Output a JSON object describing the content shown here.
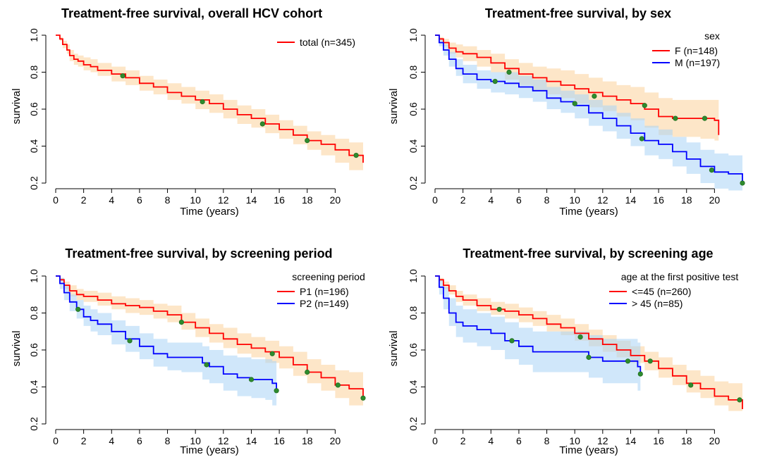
{
  "figure": {
    "colors": {
      "red": "#ff0000",
      "blue": "#0000ff",
      "red_band": "#fbd29b",
      "blue_band": "#a9d3f5",
      "censor_point": "#2e8b2e",
      "censor_edge": "#1f6e1f"
    }
  },
  "chart_data": [
    {
      "type": "line",
      "subtype": "kaplan-meier step",
      "title": "Treatment-free survival, overall HCV cohort",
      "xlabel": "Time (years)",
      "ylabel": "survival",
      "xlim": [
        0,
        22
      ],
      "ylim": [
        0.2,
        1.0
      ],
      "xticks": [
        "0",
        "2",
        "4",
        "6",
        "8",
        "10",
        "12",
        "14",
        "16",
        "18",
        "20"
      ],
      "xtick_values": [
        0,
        2,
        4,
        6,
        8,
        10,
        12,
        14,
        16,
        18,
        20
      ],
      "yticks": [
        "0.2",
        "0.4",
        "0.6",
        "0.8",
        "1.0"
      ],
      "ytick_values": [
        0.2,
        0.4,
        0.6,
        0.8,
        1.0
      ],
      "legend_title": "",
      "legend_position": "top-right",
      "series": [
        {
          "name": "total (n=345)",
          "color": "red",
          "band": "red_band",
          "x": [
            0,
            0.3,
            0.5,
            0.8,
            1,
            1.3,
            1.6,
            2,
            2.5,
            3,
            4,
            5,
            6,
            7,
            8,
            9,
            10,
            11,
            12,
            13,
            14,
            15,
            16,
            17,
            18,
            19,
            20,
            21,
            22
          ],
          "y": [
            1.0,
            0.98,
            0.95,
            0.92,
            0.89,
            0.87,
            0.86,
            0.84,
            0.83,
            0.81,
            0.79,
            0.77,
            0.74,
            0.72,
            0.69,
            0.67,
            0.65,
            0.63,
            0.6,
            0.57,
            0.55,
            0.52,
            0.49,
            0.46,
            0.43,
            0.41,
            0.38,
            0.35,
            0.31
          ],
          "lower": [
            1.0,
            0.97,
            0.93,
            0.9,
            0.86,
            0.84,
            0.83,
            0.81,
            0.8,
            0.78,
            0.75,
            0.73,
            0.7,
            0.68,
            0.65,
            0.63,
            0.6,
            0.58,
            0.55,
            0.52,
            0.5,
            0.47,
            0.44,
            0.41,
            0.38,
            0.35,
            0.31,
            0.27,
            0.2
          ],
          "upper": [
            1.0,
            0.99,
            0.97,
            0.95,
            0.92,
            0.9,
            0.89,
            0.88,
            0.87,
            0.85,
            0.83,
            0.81,
            0.78,
            0.76,
            0.74,
            0.72,
            0.7,
            0.68,
            0.65,
            0.62,
            0.6,
            0.57,
            0.54,
            0.51,
            0.48,
            0.46,
            0.44,
            0.42,
            0.42
          ],
          "censored_x": [
            4.8,
            10.5,
            14.8,
            18,
            21.5
          ],
          "censored_y": [
            0.78,
            0.64,
            0.52,
            0.43,
            0.35
          ]
        }
      ]
    },
    {
      "type": "line",
      "subtype": "kaplan-meier step",
      "title": "Treatment-free survival, by sex",
      "xlabel": "Time (years)",
      "ylabel": "survival",
      "xlim": [
        0,
        22
      ],
      "ylim": [
        0.2,
        1.0
      ],
      "xticks": [
        "0",
        "2",
        "4",
        "6",
        "8",
        "10",
        "12",
        "14",
        "16",
        "18",
        "20"
      ],
      "xtick_values": [
        0,
        2,
        4,
        6,
        8,
        10,
        12,
        14,
        16,
        18,
        20
      ],
      "yticks": [
        "0.2",
        "0.4",
        "0.6",
        "0.8",
        "1.0"
      ],
      "ytick_values": [
        0.2,
        0.4,
        0.6,
        0.8,
        1.0
      ],
      "legend_title": "sex",
      "legend_position": "top-right",
      "series": [
        {
          "name": "F (n=148)",
          "color": "red",
          "band": "red_band",
          "x": [
            0,
            0.3,
            0.6,
            1,
            1.5,
            2,
            3,
            4,
            5,
            6,
            7,
            8,
            9,
            10,
            11,
            12,
            13,
            14,
            15,
            16,
            17,
            18,
            19,
            20,
            20.3
          ],
          "y": [
            1.0,
            0.98,
            0.96,
            0.93,
            0.91,
            0.9,
            0.88,
            0.85,
            0.82,
            0.79,
            0.77,
            0.75,
            0.73,
            0.71,
            0.69,
            0.67,
            0.65,
            0.63,
            0.6,
            0.56,
            0.55,
            0.55,
            0.55,
            0.54,
            0.46
          ],
          "lower": [
            1.0,
            0.97,
            0.94,
            0.9,
            0.88,
            0.86,
            0.83,
            0.8,
            0.76,
            0.73,
            0.7,
            0.68,
            0.66,
            0.63,
            0.61,
            0.59,
            0.56,
            0.54,
            0.5,
            0.46,
            0.45,
            0.45,
            0.44,
            0.43,
            0.36
          ],
          "upper": [
            1.0,
            0.99,
            0.98,
            0.96,
            0.95,
            0.94,
            0.92,
            0.9,
            0.87,
            0.85,
            0.83,
            0.82,
            0.81,
            0.79,
            0.77,
            0.75,
            0.73,
            0.72,
            0.69,
            0.66,
            0.65,
            0.65,
            0.65,
            0.65,
            0.58
          ],
          "censored_x": [
            5.3,
            11.4,
            15,
            17.2,
            19.3
          ],
          "censored_y": [
            0.8,
            0.67,
            0.62,
            0.55,
            0.55
          ]
        },
        {
          "name": "M (n=197)",
          "color": "blue",
          "band": "blue_band",
          "x": [
            0,
            0.3,
            0.6,
            1,
            1.5,
            2,
            3,
            4,
            5,
            6,
            7,
            8,
            9,
            10,
            11,
            12,
            13,
            14,
            15,
            16,
            17,
            18,
            19,
            20,
            21,
            22
          ],
          "y": [
            1.0,
            0.96,
            0.92,
            0.87,
            0.82,
            0.79,
            0.76,
            0.75,
            0.74,
            0.72,
            0.7,
            0.66,
            0.64,
            0.62,
            0.58,
            0.55,
            0.51,
            0.47,
            0.43,
            0.41,
            0.37,
            0.33,
            0.29,
            0.26,
            0.25,
            0.2
          ],
          "lower": [
            1.0,
            0.94,
            0.89,
            0.83,
            0.78,
            0.74,
            0.71,
            0.69,
            0.68,
            0.66,
            0.64,
            0.6,
            0.58,
            0.55,
            0.51,
            0.48,
            0.44,
            0.4,
            0.35,
            0.33,
            0.29,
            0.25,
            0.2,
            0.17,
            0.16,
            0.12
          ],
          "upper": [
            1.0,
            0.98,
            0.95,
            0.91,
            0.87,
            0.84,
            0.81,
            0.8,
            0.8,
            0.78,
            0.76,
            0.72,
            0.7,
            0.68,
            0.65,
            0.62,
            0.58,
            0.55,
            0.51,
            0.49,
            0.45,
            0.42,
            0.38,
            0.36,
            0.35,
            0.34
          ],
          "censored_x": [
            4.3,
            10,
            14.8,
            19.8,
            22
          ],
          "censored_y": [
            0.75,
            0.63,
            0.44,
            0.27,
            0.2
          ]
        }
      ]
    },
    {
      "type": "line",
      "subtype": "kaplan-meier step",
      "title": "Treatment-free survival, by screening period",
      "xlabel": "Time (years)",
      "ylabel": "survival",
      "xlim": [
        0,
        22
      ],
      "ylim": [
        0.2,
        1.0
      ],
      "xticks": [
        "0",
        "2",
        "4",
        "6",
        "8",
        "10",
        "12",
        "14",
        "16",
        "18",
        "20"
      ],
      "xtick_values": [
        0,
        2,
        4,
        6,
        8,
        10,
        12,
        14,
        16,
        18,
        20
      ],
      "yticks": [
        "0.2",
        "0.4",
        "0.6",
        "0.8",
        "1.0"
      ],
      "ytick_values": [
        0.2,
        0.4,
        0.6,
        0.8,
        1.0
      ],
      "legend_title": "screening period",
      "legend_position": "top-right",
      "series": [
        {
          "name": "P1 (n=196)",
          "color": "red",
          "band": "red_band",
          "x": [
            0,
            0.3,
            0.6,
            1,
            1.5,
            2,
            3,
            4,
            5,
            6,
            7,
            8,
            9,
            10,
            11,
            12,
            13,
            14,
            15,
            16,
            17,
            18,
            19,
            20,
            21,
            22
          ],
          "y": [
            1.0,
            0.98,
            0.95,
            0.92,
            0.9,
            0.89,
            0.87,
            0.85,
            0.84,
            0.83,
            0.81,
            0.79,
            0.75,
            0.72,
            0.69,
            0.66,
            0.63,
            0.61,
            0.59,
            0.56,
            0.52,
            0.48,
            0.45,
            0.41,
            0.39,
            0.34
          ],
          "lower": [
            1.0,
            0.97,
            0.93,
            0.89,
            0.87,
            0.86,
            0.84,
            0.82,
            0.8,
            0.79,
            0.77,
            0.75,
            0.71,
            0.67,
            0.64,
            0.61,
            0.58,
            0.56,
            0.53,
            0.5,
            0.46,
            0.42,
            0.38,
            0.34,
            0.3,
            0.22
          ],
          "upper": [
            1.0,
            0.99,
            0.97,
            0.95,
            0.93,
            0.92,
            0.91,
            0.89,
            0.88,
            0.87,
            0.85,
            0.84,
            0.8,
            0.77,
            0.74,
            0.72,
            0.69,
            0.67,
            0.65,
            0.62,
            0.59,
            0.55,
            0.52,
            0.49,
            0.48,
            0.48
          ],
          "censored_x": [
            9,
            15.5,
            18,
            20.2,
            22
          ],
          "censored_y": [
            0.75,
            0.58,
            0.48,
            0.41,
            0.34
          ]
        },
        {
          "name": "P2 (n=149)",
          "color": "blue",
          "band": "blue_band",
          "x": [
            0,
            0.3,
            0.6,
            1,
            1.5,
            2,
            2.5,
            3,
            4,
            5,
            6,
            7,
            8,
            9,
            10,
            10.5,
            11,
            12,
            13,
            14,
            15,
            15.5,
            15.8
          ],
          "y": [
            1.0,
            0.96,
            0.91,
            0.86,
            0.82,
            0.78,
            0.76,
            0.74,
            0.7,
            0.66,
            0.62,
            0.58,
            0.56,
            0.56,
            0.56,
            0.53,
            0.51,
            0.47,
            0.45,
            0.44,
            0.44,
            0.42,
            0.38
          ],
          "lower": [
            1.0,
            0.93,
            0.87,
            0.81,
            0.77,
            0.73,
            0.7,
            0.68,
            0.63,
            0.59,
            0.55,
            0.51,
            0.49,
            0.48,
            0.48,
            0.44,
            0.42,
            0.38,
            0.35,
            0.34,
            0.33,
            0.3,
            0.26
          ],
          "upper": [
            1.0,
            0.99,
            0.95,
            0.9,
            0.87,
            0.84,
            0.82,
            0.8,
            0.76,
            0.73,
            0.69,
            0.66,
            0.64,
            0.64,
            0.64,
            0.62,
            0.6,
            0.57,
            0.56,
            0.55,
            0.55,
            0.54,
            0.52
          ],
          "censored_x": [
            1.6,
            5.3,
            10.8,
            14,
            15.8
          ],
          "censored_y": [
            0.82,
            0.65,
            0.52,
            0.44,
            0.38
          ]
        }
      ]
    },
    {
      "type": "line",
      "subtype": "kaplan-meier step",
      "title": "Treatment-free survival, by screening age",
      "xlabel": "Time (years)",
      "ylabel": "survival",
      "xlim": [
        0,
        22
      ],
      "ylim": [
        0.2,
        1.0
      ],
      "xticks": [
        "0",
        "2",
        "4",
        "6",
        "8",
        "10",
        "12",
        "14",
        "16",
        "18",
        "20"
      ],
      "xtick_values": [
        0,
        2,
        4,
        6,
        8,
        10,
        12,
        14,
        16,
        18,
        20
      ],
      "yticks": [
        "0.2",
        "0.4",
        "0.6",
        "0.8",
        "1.0"
      ],
      "ytick_values": [
        0.2,
        0.4,
        0.6,
        0.8,
        1.0
      ],
      "legend_title": "age at the first positive test",
      "legend_position": "top-right",
      "series": [
        {
          "name": "<=45 (n=260)",
          "color": "red",
          "band": "red_band",
          "x": [
            0,
            0.3,
            0.6,
            1,
            1.5,
            2,
            3,
            4,
            5,
            6,
            7,
            8,
            9,
            10,
            11,
            12,
            13,
            14,
            15,
            16,
            17,
            18,
            19,
            20,
            21,
            22
          ],
          "y": [
            1.0,
            0.98,
            0.95,
            0.92,
            0.89,
            0.87,
            0.84,
            0.82,
            0.81,
            0.79,
            0.77,
            0.74,
            0.72,
            0.69,
            0.66,
            0.63,
            0.6,
            0.57,
            0.54,
            0.5,
            0.46,
            0.42,
            0.39,
            0.35,
            0.33,
            0.28
          ],
          "lower": [
            1.0,
            0.97,
            0.93,
            0.9,
            0.86,
            0.84,
            0.81,
            0.79,
            0.77,
            0.75,
            0.73,
            0.7,
            0.68,
            0.65,
            0.62,
            0.59,
            0.56,
            0.53,
            0.49,
            0.45,
            0.41,
            0.37,
            0.34,
            0.3,
            0.27,
            0.22
          ],
          "upper": [
            1.0,
            0.99,
            0.97,
            0.95,
            0.92,
            0.9,
            0.88,
            0.86,
            0.85,
            0.83,
            0.81,
            0.79,
            0.77,
            0.74,
            0.71,
            0.68,
            0.65,
            0.62,
            0.59,
            0.56,
            0.52,
            0.49,
            0.46,
            0.43,
            0.42,
            0.42
          ],
          "censored_x": [
            4.6,
            10.4,
            15.4,
            18.3,
            21.8
          ],
          "censored_y": [
            0.82,
            0.67,
            0.54,
            0.41,
            0.33
          ]
        },
        {
          "name": "> 45 (n=85)",
          "color": "blue",
          "band": "blue_band",
          "x": [
            0,
            0.3,
            0.6,
            1,
            1.5,
            2,
            3,
            4,
            5,
            6,
            7,
            8,
            9,
            10,
            11,
            12,
            13,
            14,
            14.5,
            14.7
          ],
          "y": [
            1.0,
            0.94,
            0.88,
            0.8,
            0.75,
            0.73,
            0.71,
            0.69,
            0.65,
            0.62,
            0.59,
            0.59,
            0.59,
            0.59,
            0.56,
            0.54,
            0.54,
            0.54,
            0.51,
            0.47
          ],
          "lower": [
            1.0,
            0.9,
            0.82,
            0.73,
            0.67,
            0.64,
            0.62,
            0.6,
            0.55,
            0.52,
            0.48,
            0.48,
            0.48,
            0.48,
            0.45,
            0.42,
            0.42,
            0.42,
            0.38,
            0.3
          ],
          "upper": [
            1.0,
            0.98,
            0.94,
            0.88,
            0.84,
            0.82,
            0.8,
            0.78,
            0.75,
            0.72,
            0.7,
            0.7,
            0.7,
            0.7,
            0.68,
            0.66,
            0.66,
            0.66,
            0.64,
            0.62
          ],
          "censored_x": [
            5.5,
            11,
            13.8,
            14.7
          ],
          "censored_y": [
            0.65,
            0.56,
            0.54,
            0.47
          ]
        }
      ]
    }
  ]
}
